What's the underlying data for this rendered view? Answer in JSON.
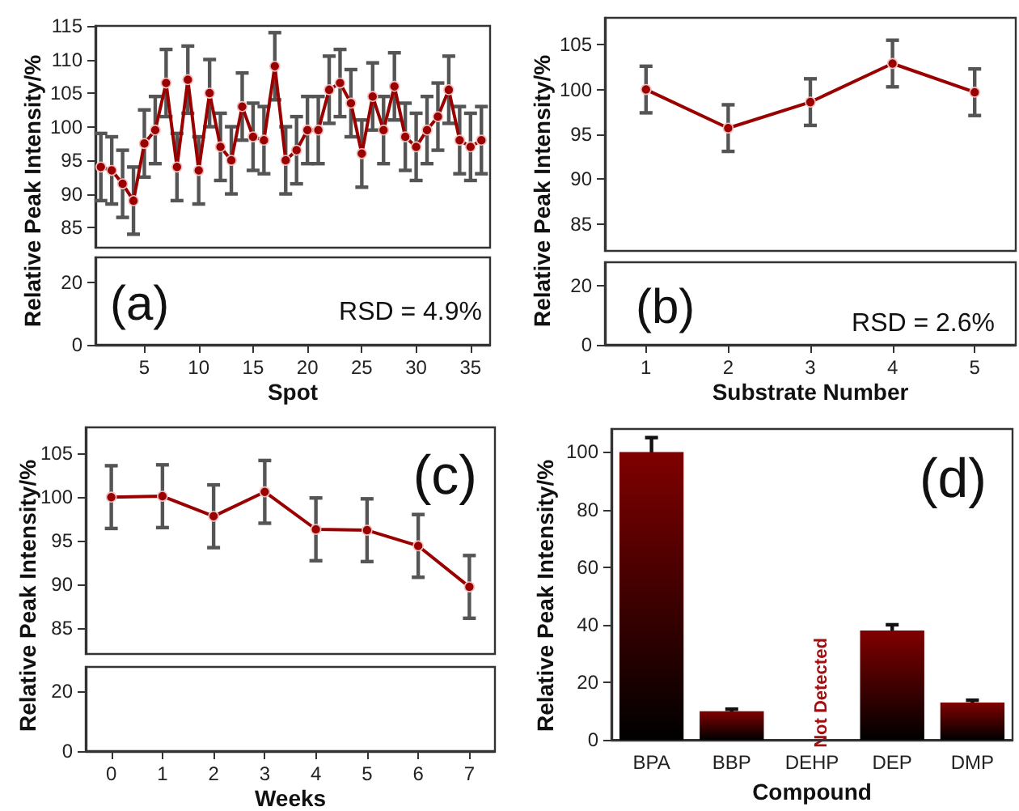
{
  "chart_data": [
    {
      "type": "line",
      "x": [
        1,
        2,
        3,
        4,
        5,
        6,
        7,
        8,
        9,
        10,
        11,
        12,
        13,
        14,
        15,
        16,
        17,
        18,
        19,
        20,
        21,
        22,
        23,
        24,
        25,
        26,
        27,
        28,
        29,
        30,
        31,
        32,
        33,
        34,
        35,
        36
      ],
      "values": [
        94,
        93.5,
        91.5,
        89,
        97.5,
        99.5,
        106.5,
        94,
        107,
        93.5,
        105,
        97,
        95,
        103,
        98.5,
        98,
        109,
        95,
        96.5,
        99.5,
        99.5,
        105.5,
        106.5,
        103.5,
        96,
        104.5,
        99.5,
        106,
        98.5,
        97,
        99.5,
        101.5,
        105.5,
        98,
        97,
        98
      ],
      "errors": [
        5,
        5,
        5,
        5,
        5,
        5,
        5,
        5,
        5,
        5,
        5,
        5,
        5,
        5,
        5,
        5,
        5,
        5,
        5,
        5,
        5,
        5,
        5,
        5,
        5,
        5,
        5,
        5,
        5,
        5,
        5,
        5,
        5,
        5,
        5,
        5
      ],
      "color": "#9b0000",
      "marker": "circle",
      "ylabel": "Relative Peak Intensity/%",
      "xlim": [
        0.5,
        36.8
      ],
      "ylim": [
        82,
        115
      ],
      "yticks": [
        85,
        90,
        95,
        100,
        105,
        110,
        115
      ],
      "tick_labels": "y"
    },
    {
      "type": "line",
      "xlim": [
        0.5,
        36.8
      ],
      "xticks": [
        5,
        10,
        15,
        20,
        25,
        30,
        35
      ],
      "ylim": [
        0,
        28
      ],
      "yticks": [
        0,
        20
      ],
      "xlabel": "Spot",
      "annotations": [
        "(a)",
        "RSD = 4.9%"
      ]
    },
    {
      "type": "line",
      "x": [
        1,
        2,
        3,
        4,
        5
      ],
      "values": [
        100,
        95.7,
        98.6,
        102.9,
        99.7
      ],
      "errors": [
        2.6,
        2.6,
        2.6,
        2.6,
        2.6
      ],
      "color": "#9b0000",
      "marker": "circle",
      "ylabel": "Relative Peak Intensity/%",
      "xlim": [
        0.5,
        5.5
      ],
      "ylim": [
        82,
        108
      ],
      "yticks": [
        85,
        90,
        95,
        100,
        105
      ],
      "tick_labels": "y"
    },
    {
      "type": "line",
      "xlim": [
        0.5,
        5.5
      ],
      "xticks": [
        1,
        2,
        3,
        4,
        5
      ],
      "ylim": [
        0,
        28
      ],
      "yticks": [
        0,
        20
      ],
      "xlabel": "Substrate Number",
      "annotations": [
        "(b)",
        "RSD = 2.6%"
      ]
    },
    {
      "type": "line",
      "x": [
        0,
        1,
        2,
        3,
        4,
        5,
        6,
        7
      ],
      "values": [
        100,
        100.1,
        97.8,
        100.6,
        96.3,
        96.2,
        94.4,
        89.7
      ],
      "errors": [
        3.6,
        3.6,
        3.6,
        3.6,
        3.6,
        3.6,
        3.6,
        3.6
      ],
      "color": "#9b0000",
      "marker": "circle",
      "ylabel": "Relative Peak Intensity/%",
      "xlim": [
        -0.5,
        7.5
      ],
      "ylim": [
        82,
        108
      ],
      "yticks": [
        85,
        90,
        95,
        100,
        105
      ],
      "tick_labels": "y",
      "annotations": [
        "(c)"
      ]
    },
    {
      "type": "line",
      "xlim": [
        -0.5,
        7.5
      ],
      "xticks": [
        0,
        1,
        2,
        3,
        4,
        5,
        6,
        7
      ],
      "ylim": [
        0,
        28
      ],
      "yticks": [
        0,
        20
      ],
      "xlabel": "Weeks"
    },
    {
      "type": "bar",
      "categories": [
        "BPA",
        "BBP",
        "DEHP",
        "DEP",
        "DMP"
      ],
      "values": [
        100,
        10,
        null,
        38,
        13
      ],
      "errors": [
        5,
        0.7,
        null,
        2,
        0.8
      ],
      "color": "#800000",
      "ylabel": "Relative Peak Intensity/%",
      "xlabel": "Compound",
      "ylim": [
        0,
        108
      ],
      "yticks": [
        0,
        20,
        40,
        60,
        80,
        100
      ],
      "annotations": [
        "(d)",
        "Not Detected"
      ]
    }
  ]
}
